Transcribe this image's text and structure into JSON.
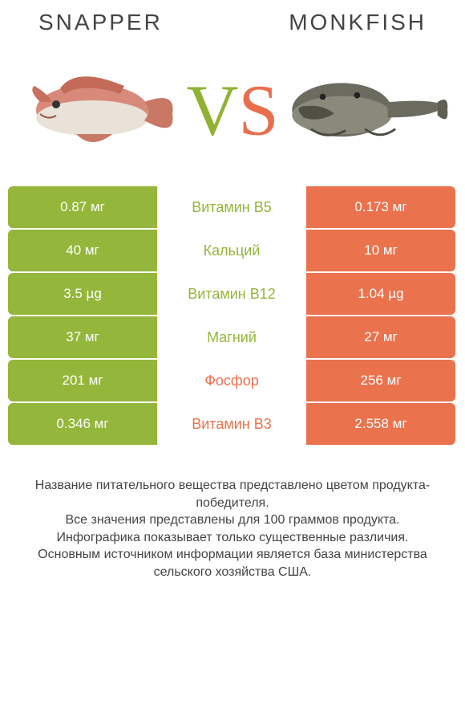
{
  "colors": {
    "green": "#94b63a",
    "orange": "#ea724d",
    "white": "#ffffff",
    "text": "#444444"
  },
  "header": {
    "left": "Snapper",
    "right": "Monkfish"
  },
  "vs": {
    "v": "V",
    "s": "S"
  },
  "rows": [
    {
      "left": "0.87 мг",
      "mid": "Витамин B5",
      "right": "0.173 мг",
      "winner": "left"
    },
    {
      "left": "40 мг",
      "mid": "Кальций",
      "right": "10 мг",
      "winner": "left"
    },
    {
      "left": "3.5 µg",
      "mid": "Витамин B12",
      "right": "1.04 µg",
      "winner": "left"
    },
    {
      "left": "37 мг",
      "mid": "Магний",
      "right": "27 мг",
      "winner": "left"
    },
    {
      "left": "201 мг",
      "mid": "Фосфор",
      "right": "256 мг",
      "winner": "right"
    },
    {
      "left": "0.346 мг",
      "mid": "Витамин B3",
      "right": "2.558 мг",
      "winner": "right"
    }
  ],
  "footer": {
    "l1": "Название питательного вещества представлено цветом продукта-победителя.",
    "l2": "Все значения представлены для 100 граммов продукта.",
    "l3": "Инфографика показывает только существенные различия.",
    "l4": "Основным источником информации является база министерства сельского хозяйства США."
  }
}
